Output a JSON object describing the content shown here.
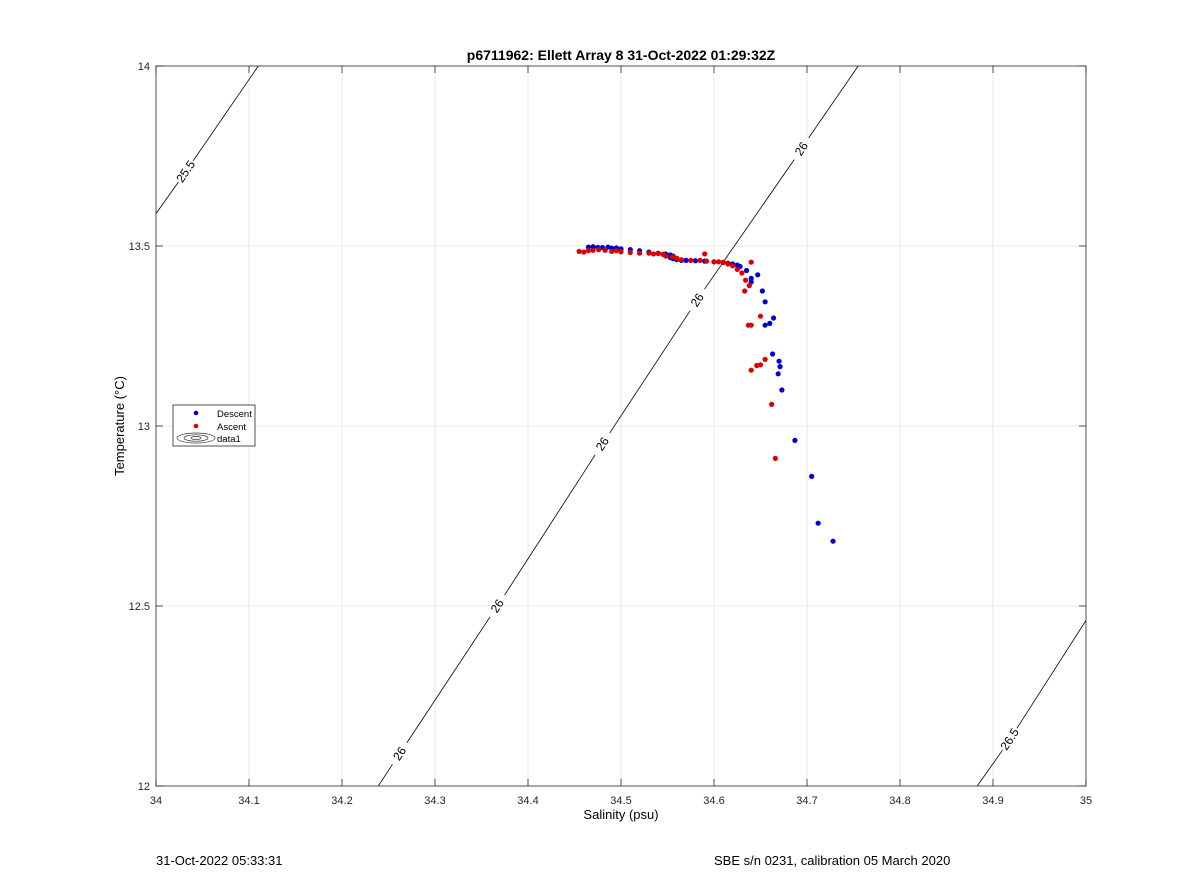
{
  "footer": {
    "timestamp": "31-Oct-2022 05:33:31",
    "sensor_info": "SBE s/n 0231, calibration 05 March 2020"
  },
  "chart_data": {
    "type": "scatter",
    "title": "p6711962: Ellett Array 8 31-Oct-2022 01:29:32Z",
    "xlabel": "Salinity (psu)",
    "ylabel": "Temperature (°C)",
    "xlim": [
      34,
      35
    ],
    "ylim": [
      12,
      14
    ],
    "x_ticks": [
      "34",
      "34.1",
      "34.2",
      "34.3",
      "34.4",
      "34.5",
      "34.6",
      "34.7",
      "34.8",
      "34.9",
      "35"
    ],
    "y_ticks": [
      "12",
      "12.5",
      "13",
      "13.5",
      "14"
    ],
    "grid": true,
    "legend_position": "left",
    "legend": [
      "Descent",
      "Ascent",
      "data1"
    ],
    "contours": [
      {
        "level": "25.5",
        "points": [
          [
            34.0,
            13.59
          ],
          [
            34.11,
            14.0
          ]
        ],
        "labels": [
          [
            34.032,
            13.707
          ]
        ]
      },
      {
        "level": "26",
        "points": [
          [
            34.239,
            12.0
          ],
          [
            34.755,
            14.0
          ]
        ],
        "labels": [
          [
            34.262,
            12.09
          ],
          [
            34.367,
            12.5
          ],
          [
            34.48,
            12.95
          ],
          [
            34.582,
            13.35
          ],
          [
            34.694,
            13.77
          ]
        ]
      },
      {
        "level": "26.5",
        "points": [
          [
            34.883,
            12.0
          ],
          [
            35.0,
            12.46
          ]
        ],
        "labels": [
          [
            34.918,
            12.13
          ]
        ]
      }
    ],
    "series": [
      {
        "name": "Descent",
        "color": "#0000cc",
        "points": [
          [
            34.465,
            13.497
          ],
          [
            34.47,
            13.498
          ],
          [
            34.475,
            13.496
          ],
          [
            34.48,
            13.496
          ],
          [
            34.486,
            13.497
          ],
          [
            34.49,
            13.494
          ],
          [
            34.495,
            13.495
          ],
          [
            34.5,
            13.492
          ],
          [
            34.51,
            13.49
          ],
          [
            34.52,
            13.487
          ],
          [
            34.53,
            13.483
          ],
          [
            34.54,
            13.48
          ],
          [
            34.548,
            13.478
          ],
          [
            34.553,
            13.475
          ],
          [
            34.556,
            13.472
          ],
          [
            34.553,
            13.468
          ],
          [
            34.556,
            13.465
          ],
          [
            34.56,
            13.462
          ],
          [
            34.565,
            13.46
          ],
          [
            34.57,
            13.46
          ],
          [
            34.58,
            13.459
          ],
          [
            34.59,
            13.458
          ],
          [
            34.6,
            13.456
          ],
          [
            34.61,
            13.454
          ],
          [
            34.615,
            13.452
          ],
          [
            34.62,
            13.45
          ],
          [
            34.625,
            13.447
          ],
          [
            34.628,
            13.443
          ],
          [
            34.635,
            13.432
          ],
          [
            34.64,
            13.41
          ],
          [
            34.647,
            13.42
          ],
          [
            34.64,
            13.4
          ],
          [
            34.652,
            13.375
          ],
          [
            34.655,
            13.345
          ],
          [
            34.664,
            13.3
          ],
          [
            34.66,
            13.285
          ],
          [
            34.655,
            13.28
          ],
          [
            34.663,
            13.2
          ],
          [
            34.67,
            13.18
          ],
          [
            34.671,
            13.165
          ],
          [
            34.669,
            13.145
          ],
          [
            34.673,
            13.1
          ],
          [
            34.687,
            12.96
          ],
          [
            34.705,
            12.86
          ],
          [
            34.712,
            12.73
          ],
          [
            34.728,
            12.68
          ]
        ]
      },
      {
        "name": "Ascent",
        "color": "#dd0000",
        "points": [
          [
            34.455,
            13.485
          ],
          [
            34.46,
            13.483
          ],
          [
            34.465,
            13.487
          ],
          [
            34.47,
            13.488
          ],
          [
            34.476,
            13.49
          ],
          [
            34.483,
            13.488
          ],
          [
            34.49,
            13.485
          ],
          [
            34.495,
            13.487
          ],
          [
            34.5,
            13.484
          ],
          [
            34.51,
            13.482
          ],
          [
            34.52,
            13.48
          ],
          [
            34.53,
            13.48
          ],
          [
            34.535,
            13.478
          ],
          [
            34.54,
            13.479
          ],
          [
            34.545,
            13.477
          ],
          [
            34.548,
            13.472
          ],
          [
            34.555,
            13.47
          ],
          [
            34.56,
            13.466
          ],
          [
            34.565,
            13.462
          ],
          [
            34.575,
            13.46
          ],
          [
            34.585,
            13.46
          ],
          [
            34.59,
            13.478
          ],
          [
            34.592,
            13.458
          ],
          [
            34.6,
            13.456
          ],
          [
            34.605,
            13.456
          ],
          [
            34.61,
            13.455
          ],
          [
            34.615,
            13.45
          ],
          [
            34.62,
            13.445
          ],
          [
            34.625,
            13.435
          ],
          [
            34.63,
            13.425
          ],
          [
            34.634,
            13.405
          ],
          [
            34.638,
            13.39
          ],
          [
            34.633,
            13.375
          ],
          [
            34.64,
            13.455
          ],
          [
            34.65,
            13.305
          ],
          [
            34.637,
            13.28
          ],
          [
            34.64,
            13.28
          ],
          [
            34.655,
            13.185
          ],
          [
            34.65,
            13.17
          ],
          [
            34.646,
            13.168
          ],
          [
            34.64,
            13.155
          ],
          [
            34.662,
            13.06
          ],
          [
            34.666,
            12.91
          ]
        ]
      }
    ]
  }
}
